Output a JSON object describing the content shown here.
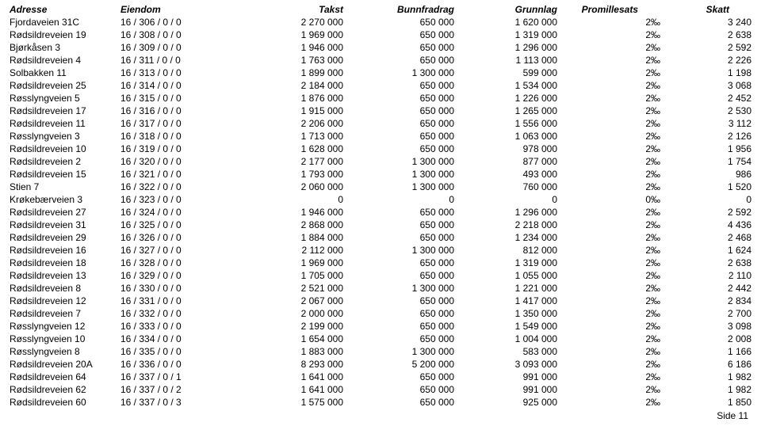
{
  "table": {
    "columns": [
      "Adresse",
      "Eiendom",
      "Takst",
      "Bunnfradrag",
      "Grunnlag",
      "Promillesats",
      "Skatt"
    ],
    "rows": [
      [
        "Fjordaveien 31C",
        "16 / 306 / 0 / 0",
        "2 270 000",
        "650 000",
        "1 620 000",
        "2‰",
        "3 240"
      ],
      [
        "Rødsildreveien 19",
        "16 / 308 / 0 / 0",
        "1 969 000",
        "650 000",
        "1 319 000",
        "2‰",
        "2 638"
      ],
      [
        "Bjørkåsen 3",
        "16 / 309 / 0 / 0",
        "1 946 000",
        "650 000",
        "1 296 000",
        "2‰",
        "2 592"
      ],
      [
        "Rødsildreveien 4",
        "16 / 311 / 0 / 0",
        "1 763 000",
        "650 000",
        "1 113 000",
        "2‰",
        "2 226"
      ],
      [
        "Solbakken 11",
        "16 / 313 / 0 / 0",
        "1 899 000",
        "1 300 000",
        "599 000",
        "2‰",
        "1 198"
      ],
      [
        "Rødsildreveien 25",
        "16 / 314 / 0 / 0",
        "2 184 000",
        "650 000",
        "1 534 000",
        "2‰",
        "3 068"
      ],
      [
        "Røsslyngveien 5",
        "16 / 315 / 0 / 0",
        "1 876 000",
        "650 000",
        "1 226 000",
        "2‰",
        "2 452"
      ],
      [
        "Rødsildreveien 17",
        "16 / 316 / 0 / 0",
        "1 915 000",
        "650 000",
        "1 265 000",
        "2‰",
        "2 530"
      ],
      [
        "Rødsildreveien 11",
        "16 / 317 / 0 / 0",
        "2 206 000",
        "650 000",
        "1 556 000",
        "2‰",
        "3 112"
      ],
      [
        "Røsslyngveien 3",
        "16 / 318 / 0 / 0",
        "1 713 000",
        "650 000",
        "1 063 000",
        "2‰",
        "2 126"
      ],
      [
        "Rødsildreveien 10",
        "16 / 319 / 0 / 0",
        "1 628 000",
        "650 000",
        "978 000",
        "2‰",
        "1 956"
      ],
      [
        "Rødsildreveien 2",
        "16 / 320 / 0 / 0",
        "2 177 000",
        "1 300 000",
        "877 000",
        "2‰",
        "1 754"
      ],
      [
        "Rødsildreveien 15",
        "16 / 321 / 0 / 0",
        "1 793 000",
        "1 300 000",
        "493 000",
        "2‰",
        "986"
      ],
      [
        "Stien 7",
        "16 / 322 / 0 / 0",
        "2 060 000",
        "1 300 000",
        "760 000",
        "2‰",
        "1 520"
      ],
      [
        "Krøkebærveien 3",
        "16 / 323 / 0 / 0",
        "0",
        "0",
        "0",
        "0‰",
        "0"
      ],
      [
        "Rødsildreveien 27",
        "16 / 324 / 0 / 0",
        "1 946 000",
        "650 000",
        "1 296 000",
        "2‰",
        "2 592"
      ],
      [
        "Rødsildreveien 31",
        "16 / 325 / 0 / 0",
        "2 868 000",
        "650 000",
        "2 218 000",
        "2‰",
        "4 436"
      ],
      [
        "Rødsildreveien 29",
        "16 / 326 / 0 / 0",
        "1 884 000",
        "650 000",
        "1 234 000",
        "2‰",
        "2 468"
      ],
      [
        "Rødsildreveien 16",
        "16 / 327 / 0 / 0",
        "2 112 000",
        "1 300 000",
        "812 000",
        "2‰",
        "1 624"
      ],
      [
        "Rødsildreveien 18",
        "16 / 328 / 0 / 0",
        "1 969 000",
        "650 000",
        "1 319 000",
        "2‰",
        "2 638"
      ],
      [
        "Rødsildreveien 13",
        "16 / 329 / 0 / 0",
        "1 705 000",
        "650 000",
        "1 055 000",
        "2‰",
        "2 110"
      ],
      [
        "Rødsildreveien 8",
        "16 / 330 / 0 / 0",
        "2 521 000",
        "1 300 000",
        "1 221 000",
        "2‰",
        "2 442"
      ],
      [
        "Rødsildreveien 12",
        "16 / 331 / 0 / 0",
        "2 067 000",
        "650 000",
        "1 417 000",
        "2‰",
        "2 834"
      ],
      [
        "Rødsildreveien 7",
        "16 / 332 / 0 / 0",
        "2 000 000",
        "650 000",
        "1 350 000",
        "2‰",
        "2 700"
      ],
      [
        "Røsslyngveien 12",
        "16 / 333 / 0 / 0",
        "2 199 000",
        "650 000",
        "1 549 000",
        "2‰",
        "3 098"
      ],
      [
        "Røsslyngveien 10",
        "16 / 334 / 0 / 0",
        "1 654 000",
        "650 000",
        "1 004 000",
        "2‰",
        "2 008"
      ],
      [
        "Røsslyngveien 8",
        "16 / 335 / 0 / 0",
        "1 883 000",
        "1 300 000",
        "583 000",
        "2‰",
        "1 166"
      ],
      [
        "Rødsildreveien 20A",
        "16 / 336 / 0 / 0",
        "8 293 000",
        "5 200 000",
        "3 093 000",
        "2‰",
        "6 186"
      ],
      [
        "Rødsildreveien 64",
        "16 / 337 / 0 / 1",
        "1 641 000",
        "650 000",
        "991 000",
        "2‰",
        "1 982"
      ],
      [
        "Rødsildreveien 62",
        "16 / 337 / 0 / 2",
        "1 641 000",
        "650 000",
        "991 000",
        "2‰",
        "1 982"
      ],
      [
        "Rødsildreveien 60",
        "16 / 337 / 0 / 3",
        "1 575 000",
        "650 000",
        "925 000",
        "2‰",
        "1 850"
      ]
    ]
  },
  "footer": "Side 11"
}
